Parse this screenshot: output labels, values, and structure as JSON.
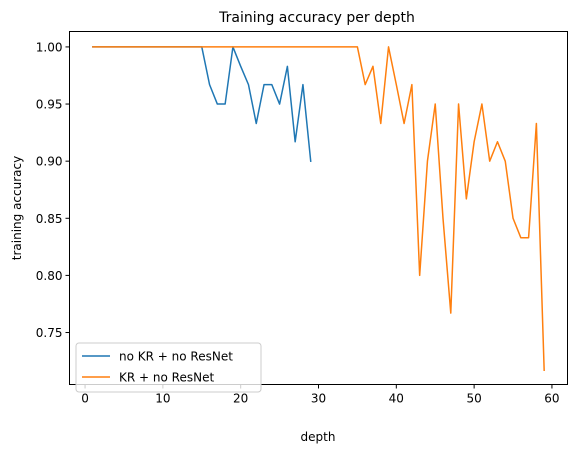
{
  "chart_data": {
    "type": "line",
    "title": "Training accuracy per depth",
    "xlabel": "depth",
    "ylabel": "training accuracy",
    "xlim": [
      -2,
      62
    ],
    "ylim": [
      0.7045,
      1.0135
    ],
    "xticks": [
      0,
      10,
      20,
      30,
      40,
      50,
      60
    ],
    "yticks": [
      0.75,
      0.8,
      0.85,
      0.9,
      0.95,
      1.0
    ],
    "ytick_labels": [
      "0.75",
      "0.80",
      "0.85",
      "0.90",
      "0.95",
      "1.00"
    ],
    "grid": false,
    "legend_position": "lower-left",
    "series": [
      {
        "name": "no KR + no ResNet",
        "color": "#1f77b4",
        "x": [
          1,
          2,
          3,
          4,
          5,
          6,
          7,
          8,
          9,
          10,
          11,
          12,
          13,
          14,
          15,
          16,
          17,
          18,
          19,
          20,
          21,
          22,
          23,
          24,
          25,
          26,
          27,
          28,
          29
        ],
        "values": [
          1.0,
          1.0,
          1.0,
          1.0,
          1.0,
          1.0,
          1.0,
          1.0,
          1.0,
          1.0,
          1.0,
          1.0,
          1.0,
          1.0,
          1.0,
          0.967,
          0.95,
          0.95,
          1.0,
          0.983,
          0.967,
          0.933,
          0.967,
          0.967,
          0.95,
          0.983,
          0.917,
          0.967,
          0.9
        ]
      },
      {
        "name": "KR + no ResNet",
        "color": "#ff7f0e",
        "x": [
          1,
          2,
          3,
          4,
          5,
          6,
          7,
          8,
          9,
          10,
          11,
          12,
          13,
          14,
          15,
          16,
          17,
          18,
          19,
          20,
          21,
          22,
          23,
          24,
          25,
          26,
          27,
          28,
          29,
          30,
          31,
          32,
          33,
          34,
          35,
          36,
          37,
          38,
          39,
          40,
          41,
          42,
          43,
          44,
          45,
          46,
          47,
          48,
          49,
          50,
          51,
          52,
          53,
          54,
          55,
          56,
          57,
          58,
          59
        ],
        "values": [
          1.0,
          1.0,
          1.0,
          1.0,
          1.0,
          1.0,
          1.0,
          1.0,
          1.0,
          1.0,
          1.0,
          1.0,
          1.0,
          1.0,
          1.0,
          1.0,
          1.0,
          1.0,
          1.0,
          1.0,
          1.0,
          1.0,
          1.0,
          1.0,
          1.0,
          1.0,
          1.0,
          1.0,
          1.0,
          1.0,
          1.0,
          1.0,
          1.0,
          1.0,
          1.0,
          0.967,
          0.983,
          0.933,
          1.0,
          0.967,
          0.933,
          0.967,
          0.8,
          0.9,
          0.95,
          0.85,
          0.767,
          0.95,
          0.867,
          0.917,
          0.95,
          0.9,
          0.917,
          0.9,
          0.85,
          0.833,
          0.833,
          0.933,
          0.717
        ]
      }
    ]
  }
}
